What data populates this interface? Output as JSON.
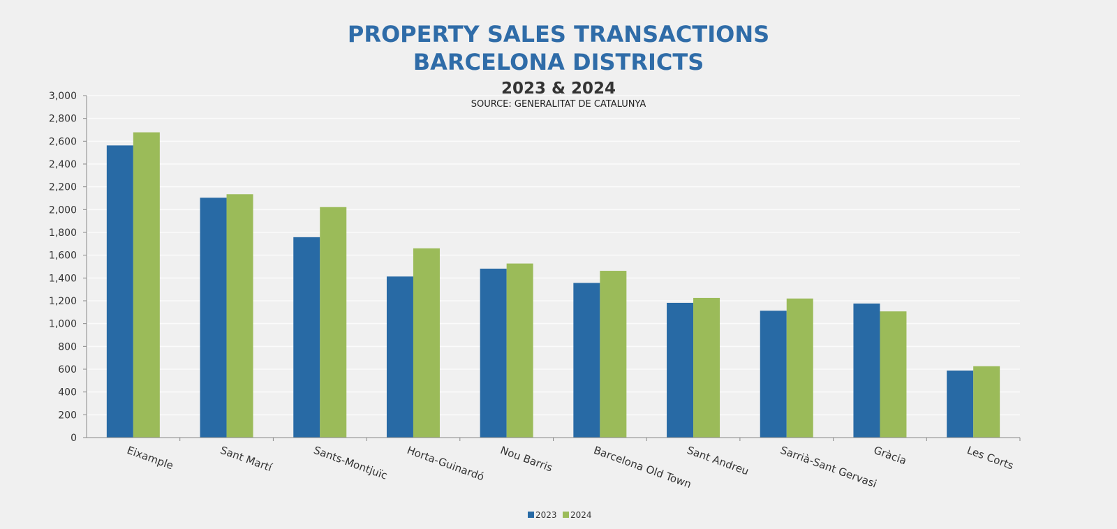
{
  "chart_data": {
    "type": "bar",
    "title": "PROPERTY SALES TRANSACTIONS",
    "title_line2": "BARCELONA DISTRICTS",
    "subtitle": "2023 & 2024",
    "source": "SOURCE: GENERALITAT DE CATALUNYA",
    "xlabel": "",
    "ylabel": "",
    "ylim": [
      0,
      3000
    ],
    "yticks": [
      0,
      200,
      400,
      600,
      800,
      1000,
      1200,
      1400,
      1600,
      1800,
      2000,
      2200,
      2400,
      2600,
      2800,
      3000
    ],
    "ytick_labels": [
      "0",
      "200",
      "400",
      "600",
      "800",
      "1,000",
      "1,200",
      "1,400",
      "1,600",
      "1,800",
      "2,000",
      "2,200",
      "2,400",
      "2,600",
      "2,800",
      "3,000"
    ],
    "grid": true,
    "legend_position": "bottom",
    "categories": [
      "Eixample",
      "Sant Martí",
      "Sants-Montjuïc",
      "Horta-Guinardó",
      "Nou Barris",
      "Barcelona Old Town",
      "Sant Andreu",
      "Sarrià-Sant Gervasi",
      "Gràcia",
      "Les Corts"
    ],
    "series": [
      {
        "name": "2023",
        "color": "#286aa5",
        "values": [
          2563,
          2104,
          1758,
          1413,
          1482,
          1357,
          1182,
          1113,
          1176,
          588
        ]
      },
      {
        "name": "2024",
        "color": "#9bbb59",
        "values": [
          2678,
          2135,
          2022,
          1660,
          1527,
          1463,
          1225,
          1220,
          1107,
          626
        ]
      }
    ]
  }
}
